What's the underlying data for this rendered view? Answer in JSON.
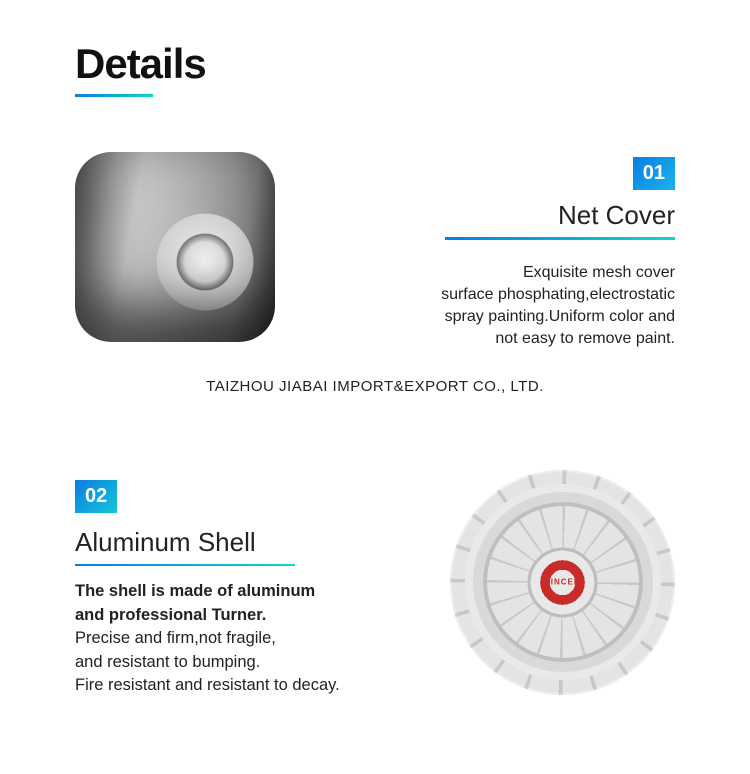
{
  "heading": "Details",
  "heading_underline_gradient": {
    "from": "#0a7de0",
    "to": "#0fd6c9"
  },
  "company": "TAIZHOU JIABAI IMPORT&EXPORT CO., LTD.",
  "item1": {
    "badge": "01",
    "badge_gradient": {
      "from": "#0a7de0",
      "to": "#19b4ec"
    },
    "title": "Net Cover",
    "underline_gradient": {
      "from": "#0a7de0",
      "to": "#0fd6c9"
    },
    "desc_l1": "Exquisite mesh cover",
    "desc_l2": "surface phosphating,electrostatic",
    "desc_l3": "spray painting.Uniform color and",
    "desc_l4": "not easy to remove paint."
  },
  "item2": {
    "badge": "02",
    "badge_gradient": {
      "from": "#0a7de0",
      "to": "#14c7d9"
    },
    "title": "Aluminum Shell",
    "underline_gradient": {
      "from": "#0a7de0",
      "to": "#0fd6c9"
    },
    "desc_l1a": "The shell is made of aluminum",
    "desc_l1b": "and professional Turner.",
    "desc_l2": "Precise and firm,not fragile,",
    "desc_l3": "and resistant to bumping.",
    "desc_l4": "Fire resistant and resistant to decay.",
    "brand": "SINCEN"
  }
}
